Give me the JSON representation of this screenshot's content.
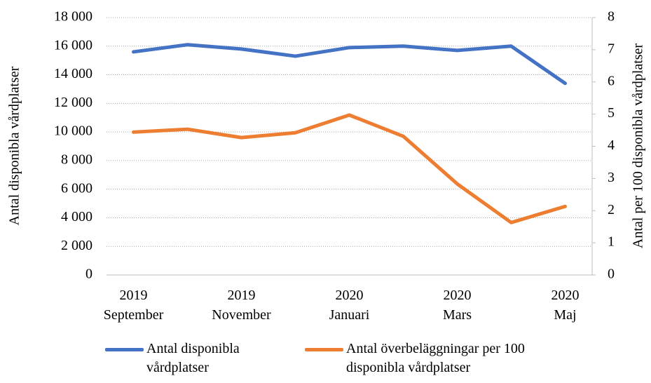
{
  "chart_data": {
    "type": "line",
    "categories": [
      "2019 September",
      null,
      "2019 November",
      null,
      "2020 Januari",
      null,
      "2020 Mars",
      null,
      "2020 Maj"
    ],
    "series": [
      {
        "name": "Antal disponibla vårdplatser",
        "color": "#4472c4",
        "axis": "y",
        "values": [
          15600,
          16100,
          15800,
          15300,
          15900,
          16000,
          15700,
          16000,
          13400
        ]
      },
      {
        "name": "Antal överbeläggningar per 100 disponibla vårdplatser",
        "color": "#ed7d31",
        "axis": "y2",
        "values": [
          4.44,
          4.53,
          4.27,
          4.42,
          4.97,
          4.31,
          2.83,
          1.63,
          2.13
        ]
      }
    ],
    "ylabel": "Antal disponibla vårdplatser",
    "y2label": "Antal per 100 disponibla vårdplatser",
    "ylim": [
      0,
      18000
    ],
    "yticks": [
      0,
      {
        "value": 2000,
        "label": "2 000"
      },
      {
        "value": 4000,
        "label": "4 000"
      },
      {
        "value": 6000,
        "label": "6 000"
      },
      {
        "value": 8000,
        "label": "8 000"
      },
      {
        "value": 10000,
        "label": "10 000"
      },
      {
        "value": 12000,
        "label": "12 000"
      },
      {
        "value": 14000,
        "label": "14 000"
      },
      {
        "value": 16000,
        "label": "16 000"
      },
      {
        "value": 18000,
        "label": "18 000"
      }
    ],
    "y2lim": [
      0,
      8
    ],
    "y2ticks": [
      0,
      1,
      2,
      3,
      4,
      5,
      6,
      7,
      8
    ],
    "grid": true,
    "legend": "bottom"
  }
}
